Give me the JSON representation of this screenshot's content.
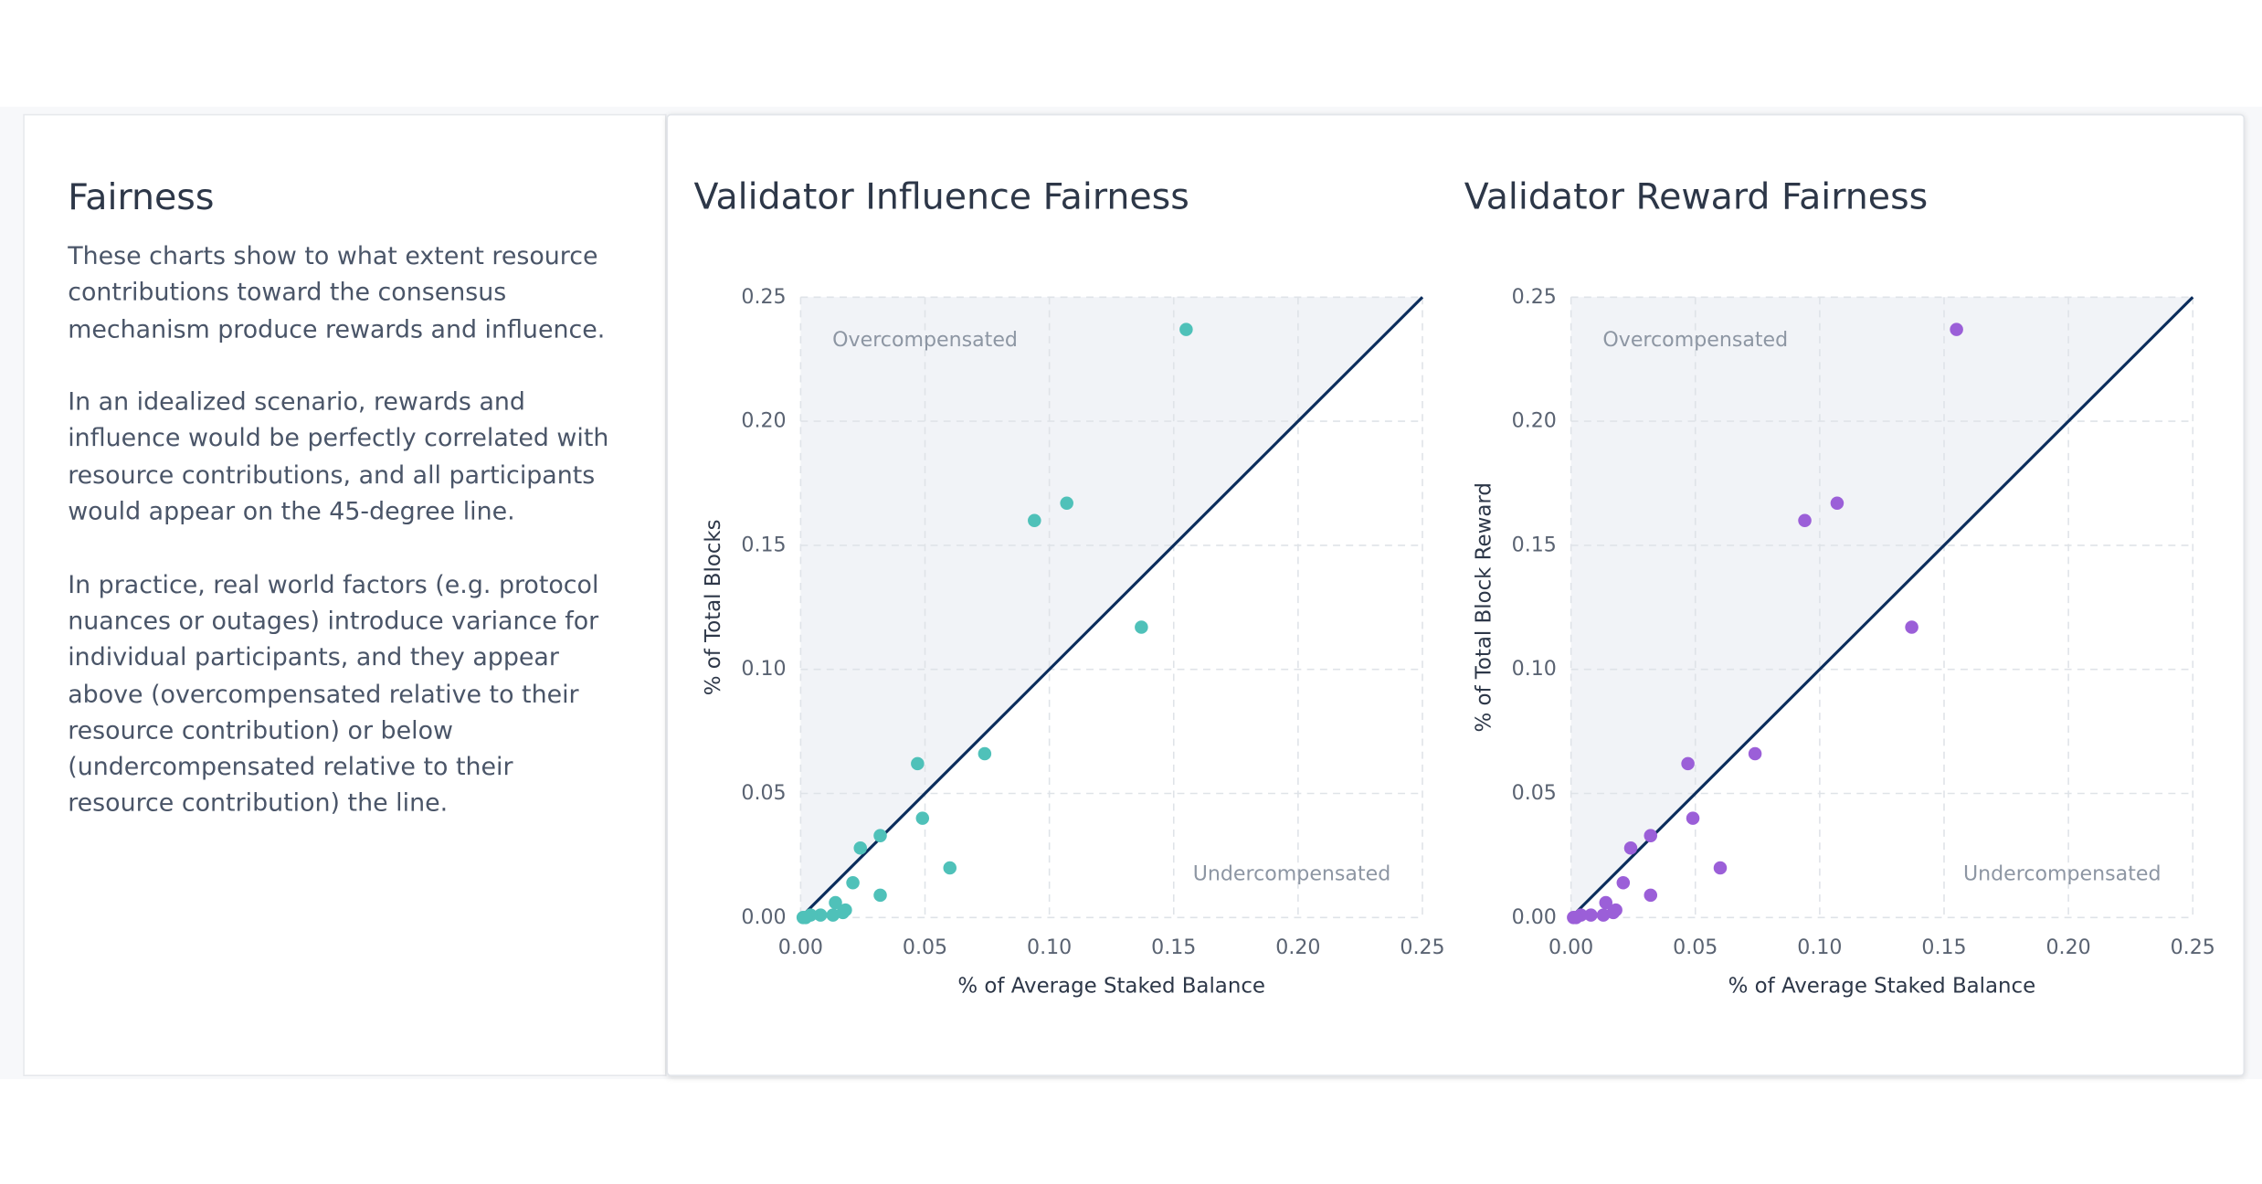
{
  "sidebar": {
    "title": "Fairness",
    "paragraphs": [
      "These charts show to what extent resource contributions toward the consensus mechanism produce rewards and influence.",
      "In an idealized scenario, rewards and influence would be perfectly correlated with resource contributions, and all participants would appear on the 45-degree line.",
      "In practice, real world factors (e.g. protocol nuances or outages) introduce variance for individual participants, and they appear above (overcompensated relative to their resource contribution) or below (undercompensated relative to their resource contribution) the line."
    ]
  },
  "chart_data": [
    {
      "type": "scatter",
      "title": "Validator Influence Fairness",
      "x_label": "% of Average Staked Balance",
      "y_label": "% of Total Blocks",
      "annotations": [
        "Overcompensated",
        "Undercompensated"
      ],
      "color": "#4fc1b9",
      "grid": true,
      "x": [
        0.155,
        0.094,
        0.107,
        0.137,
        0.074,
        0.047,
        0.049,
        0.032,
        0.024,
        0.06,
        0.021,
        0.032,
        0.014,
        0.018,
        0.013,
        0.008,
        0.004,
        0.001,
        0.002,
        0.017
      ],
      "values": [
        0.237,
        0.16,
        0.167,
        0.117,
        0.066,
        0.062,
        0.04,
        0.033,
        0.028,
        0.02,
        0.014,
        0.009,
        0.006,
        0.003,
        0.001,
        0.001,
        0.001,
        0.0,
        0.0,
        0.002
      ],
      "xlim": [
        0,
        0.25
      ],
      "ylim": [
        0,
        0.25
      ],
      "xticks": [
        {
          "value": 0,
          "label": "0.00"
        },
        0.05,
        {
          "value": 0.1,
          "label": "0.10"
        },
        0.15,
        {
          "value": 0.2,
          "label": "0.20"
        },
        0.25
      ],
      "yticks": [
        {
          "value": 0,
          "label": "0.00"
        },
        0.05,
        {
          "value": 0.1,
          "label": "0.10"
        },
        0.15,
        {
          "value": 0.2,
          "label": "0.20"
        },
        0.25
      ]
    },
    {
      "type": "scatter",
      "title": "Validator Reward Fairness",
      "x_label": "% of Average Staked Balance",
      "y_label": "% of Total Block Reward",
      "annotations": [
        "Overcompensated",
        "Undercompensated"
      ],
      "color": "#9b5fd8",
      "grid": true,
      "x": [
        0.155,
        0.094,
        0.107,
        0.137,
        0.074,
        0.047,
        0.049,
        0.032,
        0.024,
        0.06,
        0.021,
        0.032,
        0.014,
        0.018,
        0.013,
        0.008,
        0.004,
        0.001,
        0.002,
        0.017
      ],
      "values": [
        0.237,
        0.16,
        0.167,
        0.117,
        0.066,
        0.062,
        0.04,
        0.033,
        0.028,
        0.02,
        0.014,
        0.009,
        0.006,
        0.003,
        0.001,
        0.001,
        0.001,
        0.0,
        0.0,
        0.002
      ],
      "xlim": [
        0,
        0.25
      ],
      "ylim": [
        0,
        0.25
      ],
      "xticks": [
        {
          "value": 0,
          "label": "0.00"
        },
        0.05,
        {
          "value": 0.1,
          "label": "0.10"
        },
        0.15,
        {
          "value": 0.2,
          "label": "0.20"
        },
        0.25
      ],
      "yticks": [
        {
          "value": 0,
          "label": "0.00"
        },
        0.05,
        {
          "value": 0.1,
          "label": "0.10"
        },
        0.15,
        {
          "value": 0.2,
          "label": "0.20"
        },
        0.25
      ]
    }
  ]
}
